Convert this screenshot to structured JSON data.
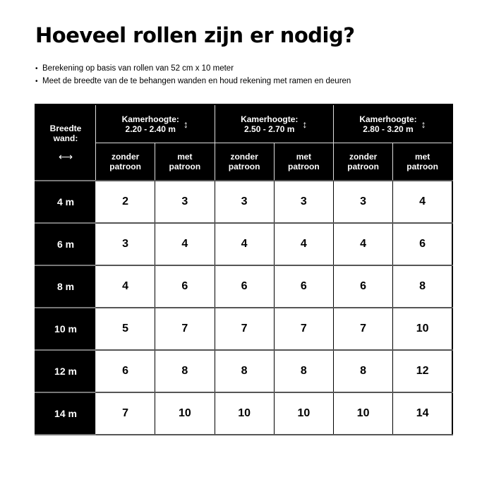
{
  "title": "Hoeveel rollen zijn er nodig?",
  "bullets": [
    "Berekening op basis van rollen van 52 cm x 10 meter",
    "Meet de breedte van de te behangen wanden en houd rekening met ramen en deuren"
  ],
  "table": {
    "corner_label_1": "Breedte",
    "corner_label_2": "wand:",
    "corner_icon": "horizontal-double-arrow-icon",
    "groups": [
      {
        "label": "Kamerhoogte:",
        "range": "2.20 - 2.40 m"
      },
      {
        "label": "Kamerhoogte:",
        "range": "2.50 - 2.70 m"
      },
      {
        "label": "Kamerhoogte:",
        "range": "2.80 - 3.20 m"
      }
    ],
    "sub": {
      "zonder_1": "zonder",
      "zonder_2": "patroon",
      "met_1": "met",
      "met_2": "patroon"
    },
    "rows": [
      {
        "width": "4 m",
        "values": [
          "2",
          "3",
          "3",
          "3",
          "3",
          "4"
        ]
      },
      {
        "width": "6 m",
        "values": [
          "3",
          "4",
          "4",
          "4",
          "4",
          "6"
        ]
      },
      {
        "width": "8 m",
        "values": [
          "4",
          "6",
          "6",
          "6",
          "6",
          "8"
        ]
      },
      {
        "width": "10 m",
        "values": [
          "5",
          "7",
          "7",
          "7",
          "7",
          "10"
        ]
      },
      {
        "width": "12 m",
        "values": [
          "6",
          "8",
          "8",
          "8",
          "8",
          "12"
        ]
      },
      {
        "width": "14 m",
        "values": [
          "7",
          "10",
          "10",
          "10",
          "10",
          "14"
        ]
      }
    ]
  }
}
